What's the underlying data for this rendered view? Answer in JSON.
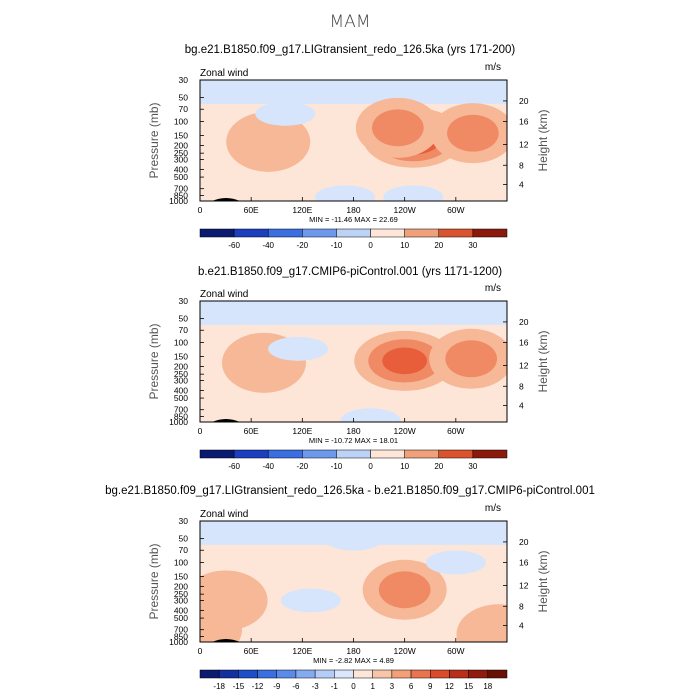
{
  "main_title": "MAM",
  "chart_data": [
    {
      "type": "heatmap",
      "title": "bg.e21.B1850.f09_g17.LIGtransient_redo_126.5ka (yrs 171-200)",
      "variable": "Zonal wind",
      "units": "m/s",
      "ylabel": "Pressure (mb)",
      "ylabel_right": "Height (km)",
      "xticks": [
        "0",
        "60E",
        "120E",
        "180",
        "120W",
        "60W"
      ],
      "yticks": [
        "30",
        "50",
        "70",
        "100",
        "150",
        "200",
        "250",
        "300",
        "400",
        "500",
        "700",
        "850",
        "1000"
      ],
      "yticks_right": [
        "20",
        "16",
        "12",
        "8",
        "4"
      ],
      "stats": "MIN =  -11.46   MAX =   22.69",
      "colorbar": [
        "-60",
        "-40",
        "-20",
        "-10",
        "0",
        "10",
        "20",
        "30"
      ],
      "features": [
        {
          "lon": 250,
          "p": 160,
          "level": 4
        },
        {
          "lon": 232,
          "p": 120,
          "level": 2
        },
        {
          "lon": 80,
          "p": 180,
          "level": 1
        },
        {
          "lon": 320,
          "p": 140,
          "level": 2
        },
        {
          "lon": 100,
          "p": 80,
          "level": -1
        },
        {
          "lon": 170,
          "p": 900,
          "level": -1
        },
        {
          "lon": 250,
          "p": 900,
          "level": -1
        }
      ]
    },
    {
      "type": "heatmap",
      "title": "b.e21.B1850.f09_g17.CMIP6-piControl.001 (yrs 1171-1200)",
      "variable": "Zonal wind",
      "units": "m/s",
      "ylabel": "Pressure (mb)",
      "ylabel_right": "Height (km)",
      "xticks": [
        "0",
        "60E",
        "120E",
        "180",
        "120W",
        "60W"
      ],
      "yticks": [
        "30",
        "50",
        "70",
        "100",
        "150",
        "200",
        "250",
        "300",
        "400",
        "500",
        "700",
        "850",
        "1000"
      ],
      "yticks_right": [
        "20",
        "16",
        "12",
        "8",
        "4"
      ],
      "stats": "MIN =  -10.72   MAX =   18.01",
      "colorbar": [
        "-60",
        "-40",
        "-20",
        "-10",
        "0",
        "10",
        "20",
        "30"
      ],
      "features": [
        {
          "lon": 240,
          "p": 170,
          "level": 3
        },
        {
          "lon": 318,
          "p": 160,
          "level": 2
        },
        {
          "lon": 75,
          "p": 180,
          "level": 1
        },
        {
          "lon": 115,
          "p": 120,
          "level": -1
        },
        {
          "lon": 200,
          "p": 950,
          "level": -1
        }
      ]
    },
    {
      "type": "heatmap",
      "title": "bg.e21.B1850.f09_g17.LIGtransient_redo_126.5ka - b.e21.B1850.f09_g17.CMIP6-piControl.001",
      "variable": "Zonal wind",
      "units": "m/s",
      "ylabel": "Pressure (mb)",
      "ylabel_right": "Height (km)",
      "xticks": [
        "0",
        "60E",
        "120E",
        "180",
        "120W",
        "60W"
      ],
      "yticks": [
        "30",
        "50",
        "70",
        "100",
        "150",
        "200",
        "250",
        "300",
        "400",
        "500",
        "700",
        "850",
        "1000"
      ],
      "yticks_right": [
        "20",
        "16",
        "12",
        "8",
        "4"
      ],
      "stats": "MIN =   -2.82   MAX =    4.89",
      "colorbar": [
        "-18",
        "-15",
        "-12",
        "-9",
        "-6",
        "-3",
        "-1",
        "0",
        "1",
        "3",
        "6",
        "9",
        "12",
        "15",
        "18"
      ],
      "features": [
        {
          "lon": 240,
          "p": 220,
          "level": 2
        },
        {
          "lon": 30,
          "p": 300,
          "level": 1
        },
        {
          "lon": 350,
          "p": 800,
          "level": 1
        },
        {
          "lon": 0,
          "p": 700,
          "level": 1
        },
        {
          "lon": 180,
          "p": 50,
          "level": -1
        },
        {
          "lon": 130,
          "p": 300,
          "level": -1
        },
        {
          "lon": 300,
          "p": 100,
          "level": -1
        }
      ]
    }
  ],
  "colors": {
    "bg_zero": "#fde6d8",
    "pos1": "#f6b896",
    "pos2": "#f08a65",
    "pos3": "#e85e3b",
    "pos4": "#d93a22",
    "neg1": "#d6e5fb",
    "neg2": "#b7cff5"
  }
}
